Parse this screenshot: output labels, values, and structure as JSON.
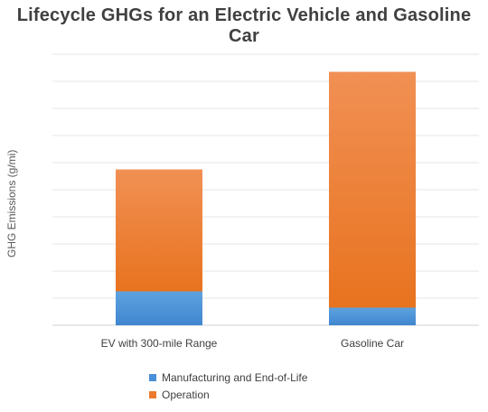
{
  "chart_data": {
    "type": "bar",
    "stacked": true,
    "title": "Lifecycle GHGs for an Electric Vehicle and Gasoline Car",
    "ylabel": "GHG Emissions (g/mi)",
    "xlabel": "",
    "categories": [
      "EV with 300-mile Range",
      "Gasoline Car"
    ],
    "series": [
      {
        "name": "Manufacturing and End-of-Life",
        "values": [
          1.25,
          0.65
        ],
        "color": "#5b9bd5"
      },
      {
        "name": "Operation",
        "values": [
          4.5,
          8.7
        ],
        "color": "#ed7d31"
      }
    ],
    "ylim": [
      0,
      10
    ],
    "grid": true,
    "legend": "bottom"
  }
}
